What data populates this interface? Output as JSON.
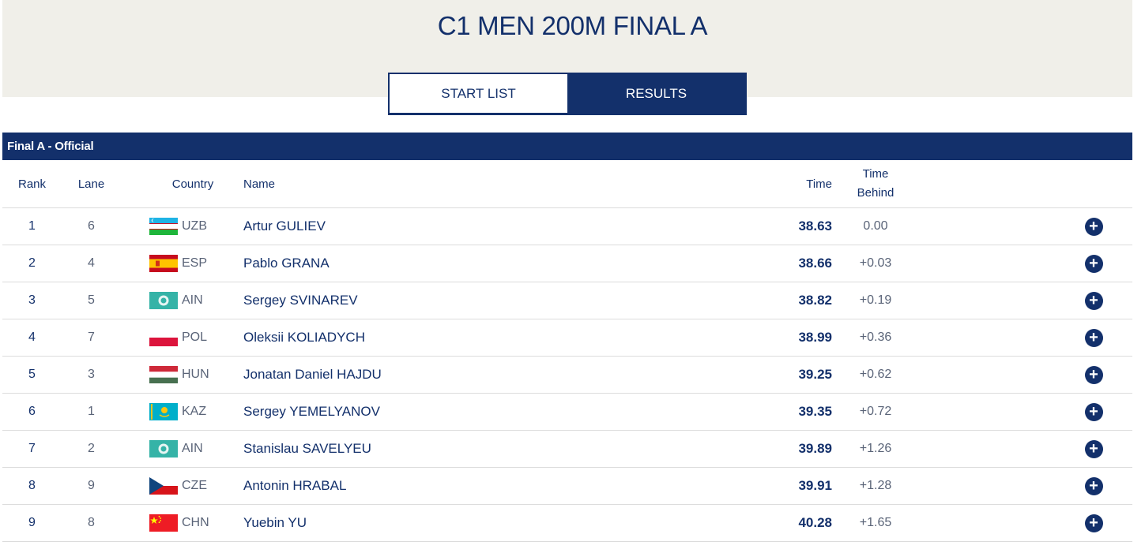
{
  "event": {
    "title": "C1 MEN 200M FINAL A"
  },
  "tabs": [
    {
      "label": "START LIST",
      "active": false
    },
    {
      "label": "RESULTS",
      "active": true
    }
  ],
  "section": {
    "title": "Final A - Official"
  },
  "columns": {
    "rank": "Rank",
    "lane": "Lane",
    "country": "Country",
    "name": "Name",
    "time": "Time",
    "behind_line1": "Time",
    "behind_line2": "Behind"
  },
  "results": [
    {
      "rank": "1",
      "lane": "6",
      "country": "UZB",
      "flag": "uzb-flag",
      "name": "Artur GULIEV",
      "time": "38.63",
      "behind": "0.00"
    },
    {
      "rank": "2",
      "lane": "4",
      "country": "ESP",
      "flag": "esp-flag",
      "name": "Pablo GRANA",
      "time": "38.66",
      "behind": "+0.03"
    },
    {
      "rank": "3",
      "lane": "5",
      "country": "AIN",
      "flag": "ain-flag",
      "name": "Sergey SVINAREV",
      "time": "38.82",
      "behind": "+0.19"
    },
    {
      "rank": "4",
      "lane": "7",
      "country": "POL",
      "flag": "pol-flag",
      "name": "Oleksii KOLIADYCH",
      "time": "38.99",
      "behind": "+0.36"
    },
    {
      "rank": "5",
      "lane": "3",
      "country": "HUN",
      "flag": "hun-flag",
      "name": "Jonatan Daniel HAJDU",
      "time": "39.25",
      "behind": "+0.62"
    },
    {
      "rank": "6",
      "lane": "1",
      "country": "KAZ",
      "flag": "kaz-flag",
      "name": "Sergey YEMELYANOV",
      "time": "39.35",
      "behind": "+0.72"
    },
    {
      "rank": "7",
      "lane": "2",
      "country": "AIN",
      "flag": "ain-flag",
      "name": "Stanislau SAVELYEU",
      "time": "39.89",
      "behind": "+1.26"
    },
    {
      "rank": "8",
      "lane": "9",
      "country": "CZE",
      "flag": "cze-flag",
      "name": "Antonin HRABAL",
      "time": "39.91",
      "behind": "+1.28"
    },
    {
      "rank": "9",
      "lane": "8",
      "country": "CHN",
      "flag": "chn-flag",
      "name": "Yuebin YU",
      "time": "40.28",
      "behind": "+1.65"
    }
  ],
  "icons": {
    "expand": "plus-circle-icon"
  },
  "colors": {
    "navy": "#13306b",
    "band": "#f0efe9"
  }
}
